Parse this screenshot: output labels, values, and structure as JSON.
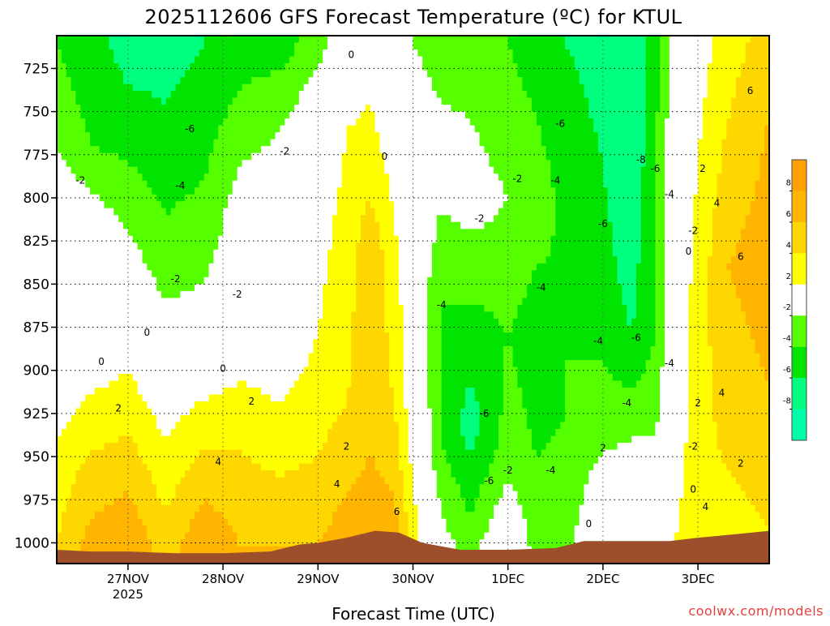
{
  "chart_data": {
    "type": "heatmap",
    "title": "2025112606 GFS Forecast Temperature (ºC) for KTUL",
    "xlabel": "Forecast Time (UTC)",
    "ylabel": "",
    "credit": "coolwx.com/models",
    "x_ticks": [
      {
        "label": "27NOV",
        "sublabel": "2025",
        "day": 1
      },
      {
        "label": "28NOV",
        "sublabel": "",
        "day": 2
      },
      {
        "label": "29NOV",
        "sublabel": "",
        "day": 3
      },
      {
        "label": "30NOV",
        "sublabel": "",
        "day": 4
      },
      {
        "label": "1DEC",
        "sublabel": "",
        "day": 5
      },
      {
        "label": "2DEC",
        "sublabel": "",
        "day": 6
      },
      {
        "label": "3DEC",
        "sublabel": "",
        "day": 7
      }
    ],
    "xlim_days": [
      0.25,
      7.75
    ],
    "y_ticks": [
      725,
      750,
      775,
      800,
      825,
      850,
      875,
      900,
      925,
      950,
      975,
      1000
    ],
    "ylim_hpa": [
      1012,
      706
    ],
    "grid": true,
    "colorbar": {
      "levels": [
        "8",
        "6",
        "4",
        "2",
        "-2",
        "-4",
        "-6",
        "-8"
      ],
      "bins": [
        {
          "range": [
            8,
            10
          ],
          "color": "#ff9f00"
        },
        {
          "range": [
            6,
            8
          ],
          "color": "#ffb400"
        },
        {
          "range": [
            4,
            6
          ],
          "color": "#ffd700"
        },
        {
          "range": [
            2,
            4
          ],
          "color": "#ffff00"
        },
        {
          "range": [
            -2,
            2
          ],
          "color": "#ffffff"
        },
        {
          "range": [
            -4,
            -2
          ],
          "color": "#55ff00"
        },
        {
          "range": [
            -6,
            -4
          ],
          "color": "#00e400"
        },
        {
          "range": [
            -8,
            -6
          ],
          "color": "#00ff7f"
        },
        {
          "range": [
            -10,
            -8
          ],
          "color": "#00ffaa"
        }
      ]
    },
    "ground_color": "#9c4f2a",
    "surface_pressure": [
      {
        "day": 0.25,
        "p": 1004
      },
      {
        "day": 0.6,
        "p": 1005
      },
      {
        "day": 1.0,
        "p": 1005
      },
      {
        "day": 1.5,
        "p": 1006
      },
      {
        "day": 2.0,
        "p": 1006
      },
      {
        "day": 2.5,
        "p": 1005
      },
      {
        "day": 2.8,
        "p": 1001
      },
      {
        "day": 3.0,
        "p": 1000
      },
      {
        "day": 3.3,
        "p": 997
      },
      {
        "day": 3.6,
        "p": 993
      },
      {
        "day": 3.85,
        "p": 994
      },
      {
        "day": 4.1,
        "p": 1000
      },
      {
        "day": 4.5,
        "p": 1004
      },
      {
        "day": 5.0,
        "p": 1004
      },
      {
        "day": 5.5,
        "p": 1003
      },
      {
        "day": 5.8,
        "p": 999
      },
      {
        "day": 6.3,
        "p": 999
      },
      {
        "day": 6.7,
        "p": 999
      },
      {
        "day": 7.0,
        "p": 997
      },
      {
        "day": 7.4,
        "p": 995
      },
      {
        "day": 7.75,
        "p": 993
      }
    ],
    "temperature_columns": [
      {
        "day": 0.25,
        "temps": [
          {
            "p": 710,
            "t": -4
          },
          {
            "p": 760,
            "t": -3
          },
          {
            "p": 800,
            "t": 0
          },
          {
            "p": 900,
            "t": 0
          },
          {
            "p": 960,
            "t": 3
          },
          {
            "p": 1004,
            "t": 4
          }
        ]
      },
      {
        "day": 0.6,
        "temps": [
          {
            "p": 710,
            "t": -5
          },
          {
            "p": 770,
            "t": -4
          },
          {
            "p": 810,
            "t": -1
          },
          {
            "p": 880,
            "t": 0
          },
          {
            "p": 930,
            "t": 3
          },
          {
            "p": 1004,
            "t": 7
          }
        ]
      },
      {
        "day": 1.0,
        "temps": [
          {
            "p": 710,
            "t": -7
          },
          {
            "p": 760,
            "t": -5
          },
          {
            "p": 800,
            "t": -3
          },
          {
            "p": 860,
            "t": 0
          },
          {
            "p": 920,
            "t": 3
          },
          {
            "p": 1004,
            "t": 8
          }
        ]
      },
      {
        "day": 1.4,
        "temps": [
          {
            "p": 710,
            "t": -7
          },
          {
            "p": 780,
            "t": -5
          },
          {
            "p": 840,
            "t": -3
          },
          {
            "p": 900,
            "t": 0
          },
          {
            "p": 940,
            "t": 2
          },
          {
            "p": 1004,
            "t": 5
          }
        ]
      },
      {
        "day": 1.8,
        "temps": [
          {
            "p": 710,
            "t": -6
          },
          {
            "p": 790,
            "t": -4
          },
          {
            "p": 850,
            "t": -2
          },
          {
            "p": 890,
            "t": 0
          },
          {
            "p": 930,
            "t": 3
          },
          {
            "p": 1004,
            "t": 8
          }
        ]
      },
      {
        "day": 2.2,
        "temps": [
          {
            "p": 710,
            "t": -5
          },
          {
            "p": 760,
            "t": -3
          },
          {
            "p": 800,
            "t": -1
          },
          {
            "p": 880,
            "t": 0
          },
          {
            "p": 920,
            "t": 3
          },
          {
            "p": 1004,
            "t": 6
          }
        ]
      },
      {
        "day": 2.6,
        "temps": [
          {
            "p": 710,
            "t": -5
          },
          {
            "p": 760,
            "t": -2
          },
          {
            "p": 830,
            "t": 0
          },
          {
            "p": 900,
            "t": 1
          },
          {
            "p": 940,
            "t": 3
          },
          {
            "p": 1004,
            "t": 6
          }
        ]
      },
      {
        "day": 3.0,
        "temps": [
          {
            "p": 710,
            "t": -3
          },
          {
            "p": 740,
            "t": -1
          },
          {
            "p": 800,
            "t": 1
          },
          {
            "p": 880,
            "t": 2
          },
          {
            "p": 950,
            "t": 4
          },
          {
            "p": 1001,
            "t": 6
          }
        ]
      },
      {
        "day": 3.3,
        "temps": [
          {
            "p": 710,
            "t": 0
          },
          {
            "p": 760,
            "t": 2
          },
          {
            "p": 840,
            "t": 3
          },
          {
            "p": 920,
            "t": 4
          },
          {
            "p": 997,
            "t": 7
          }
        ]
      },
      {
        "day": 3.55,
        "temps": [
          {
            "p": 710,
            "t": 1
          },
          {
            "p": 780,
            "t": 3
          },
          {
            "p": 840,
            "t": 6
          },
          {
            "p": 900,
            "t": 5
          },
          {
            "p": 994,
            "t": 7
          }
        ]
      },
      {
        "day": 3.8,
        "temps": [
          {
            "p": 710,
            "t": 0
          },
          {
            "p": 770,
            "t": 1
          },
          {
            "p": 850,
            "t": 3
          },
          {
            "p": 920,
            "t": 4
          },
          {
            "p": 994,
            "t": 7
          }
        ]
      },
      {
        "day": 4.0,
        "temps": [
          {
            "p": 710,
            "t": -2
          },
          {
            "p": 780,
            "t": 0
          },
          {
            "p": 860,
            "t": 0
          },
          {
            "p": 940,
            "t": 1
          },
          {
            "p": 998,
            "t": 3
          }
        ]
      },
      {
        "day": 4.3,
        "temps": [
          {
            "p": 710,
            "t": -3
          },
          {
            "p": 780,
            "t": -1
          },
          {
            "p": 860,
            "t": -4
          },
          {
            "p": 940,
            "t": -4
          },
          {
            "p": 1002,
            "t": -1
          }
        ]
      },
      {
        "day": 4.6,
        "temps": [
          {
            "p": 710,
            "t": -3
          },
          {
            "p": 800,
            "t": -1
          },
          {
            "p": 880,
            "t": -5
          },
          {
            "p": 930,
            "t": -7
          },
          {
            "p": 1004,
            "t": -3
          }
        ]
      },
      {
        "day": 5.0,
        "temps": [
          {
            "p": 710,
            "t": -4
          },
          {
            "p": 800,
            "t": -2
          },
          {
            "p": 880,
            "t": -4
          },
          {
            "p": 950,
            "t": -3
          },
          {
            "p": 1004,
            "t": 1
          }
        ]
      },
      {
        "day": 5.3,
        "temps": [
          {
            "p": 710,
            "t": -5
          },
          {
            "p": 800,
            "t": -3
          },
          {
            "p": 880,
            "t": -5
          },
          {
            "p": 950,
            "t": -4
          },
          {
            "p": 1004,
            "t": -3
          }
        ]
      },
      {
        "day": 5.6,
        "temps": [
          {
            "p": 710,
            "t": -6
          },
          {
            "p": 760,
            "t": -5
          },
          {
            "p": 850,
            "t": -4
          },
          {
            "p": 930,
            "t": -4
          },
          {
            "p": 1003,
            "t": -3
          }
        ]
      },
      {
        "day": 6.0,
        "temps": [
          {
            "p": 710,
            "t": -7
          },
          {
            "p": 780,
            "t": -6
          },
          {
            "p": 860,
            "t": -5
          },
          {
            "p": 930,
            "t": -3
          },
          {
            "p": 999,
            "t": 1
          }
        ]
      },
      {
        "day": 6.3,
        "temps": [
          {
            "p": 710,
            "t": -7
          },
          {
            "p": 780,
            "t": -8
          },
          {
            "p": 880,
            "t": -6
          },
          {
            "p": 940,
            "t": -2
          },
          {
            "p": 999,
            "t": 0
          }
        ]
      },
      {
        "day": 6.55,
        "temps": [
          {
            "p": 710,
            "t": -5
          },
          {
            "p": 790,
            "t": -4
          },
          {
            "p": 880,
            "t": -4
          },
          {
            "p": 940,
            "t": -2
          },
          {
            "p": 999,
            "t": 1
          }
        ]
      },
      {
        "day": 6.75,
        "temps": [
          {
            "p": 710,
            "t": -1
          },
          {
            "p": 800,
            "t": 0
          },
          {
            "p": 880,
            "t": 0
          },
          {
            "p": 940,
            "t": 1
          },
          {
            "p": 999,
            "t": 2
          }
        ]
      },
      {
        "day": 7.0,
        "temps": [
          {
            "p": 710,
            "t": 1
          },
          {
            "p": 780,
            "t": 2
          },
          {
            "p": 860,
            "t": 3
          },
          {
            "p": 940,
            "t": 3
          },
          {
            "p": 997,
            "t": 3
          }
        ]
      },
      {
        "day": 7.3,
        "temps": [
          {
            "p": 710,
            "t": 3
          },
          {
            "p": 760,
            "t": 4
          },
          {
            "p": 840,
            "t": 6
          },
          {
            "p": 920,
            "t": 5
          },
          {
            "p": 995,
            "t": 3
          }
        ]
      },
      {
        "day": 7.75,
        "temps": [
          {
            "p": 710,
            "t": 5
          },
          {
            "p": 750,
            "t": 6
          },
          {
            "p": 830,
            "t": 7
          },
          {
            "p": 910,
            "t": 6
          },
          {
            "p": 993,
            "t": 4
          }
        ]
      }
    ],
    "contour_labels": [
      {
        "text": "0",
        "day": 3.35,
        "p": 717
      },
      {
        "text": "6",
        "day": 7.55,
        "p": 738
      },
      {
        "text": "-6",
        "day": 1.65,
        "p": 760
      },
      {
        "text": "-6",
        "day": 5.55,
        "p": 757
      },
      {
        "text": "-2",
        "day": 2.65,
        "p": 773
      },
      {
        "text": "0",
        "day": 3.7,
        "p": 776
      },
      {
        "text": "-8",
        "day": 6.4,
        "p": 778
      },
      {
        "text": "-6",
        "day": 6.55,
        "p": 783
      },
      {
        "text": "2",
        "day": 7.05,
        "p": 783
      },
      {
        "text": "-2",
        "day": 0.5,
        "p": 790
      },
      {
        "text": "-4",
        "day": 1.55,
        "p": 793
      },
      {
        "text": "-2",
        "day": 5.1,
        "p": 789
      },
      {
        "text": "-4",
        "day": 5.5,
        "p": 790
      },
      {
        "text": "-4",
        "day": 6.7,
        "p": 798
      },
      {
        "text": "4",
        "day": 7.2,
        "p": 803
      },
      {
        "text": "-2",
        "day": 4.7,
        "p": 812
      },
      {
        "text": "-6",
        "day": 6.0,
        "p": 815
      },
      {
        "text": "-2",
        "day": 6.95,
        "p": 819
      },
      {
        "text": "0",
        "day": 6.9,
        "p": 831
      },
      {
        "text": "6",
        "day": 7.45,
        "p": 834
      },
      {
        "text": "-2",
        "day": 1.5,
        "p": 847
      },
      {
        "text": "-4",
        "day": 5.35,
        "p": 852
      },
      {
        "text": "-2",
        "day": 2.15,
        "p": 856
      },
      {
        "text": "-4",
        "day": 4.3,
        "p": 862
      },
      {
        "text": "0",
        "day": 1.2,
        "p": 878
      },
      {
        "text": "-6",
        "day": 6.35,
        "p": 881
      },
      {
        "text": "-4",
        "day": 5.95,
        "p": 883
      },
      {
        "text": "0",
        "day": 0.72,
        "p": 895
      },
      {
        "text": "-4",
        "day": 6.7,
        "p": 896
      },
      {
        "text": "0",
        "day": 2.0,
        "p": 899
      },
      {
        "text": "4",
        "day": 7.25,
        "p": 913
      },
      {
        "text": "2",
        "day": 0.9,
        "p": 922
      },
      {
        "text": "2",
        "day": 2.3,
        "p": 918
      },
      {
        "text": "-4",
        "day": 6.25,
        "p": 919
      },
      {
        "text": "2",
        "day": 7.0,
        "p": 919
      },
      {
        "text": "-6",
        "day": 4.75,
        "p": 925
      },
      {
        "text": "2",
        "day": 3.3,
        "p": 944
      },
      {
        "text": "-2",
        "day": 6.95,
        "p": 944
      },
      {
        "text": "2",
        "day": 6.0,
        "p": 945
      },
      {
        "text": "4",
        "day": 1.95,
        "p": 953
      },
      {
        "text": "-2",
        "day": 5.0,
        "p": 958
      },
      {
        "text": "-4",
        "day": 5.45,
        "p": 958
      },
      {
        "text": "2",
        "day": 7.45,
        "p": 954
      },
      {
        "text": "4",
        "day": 3.2,
        "p": 966
      },
      {
        "text": "-6",
        "day": 4.8,
        "p": 964
      },
      {
        "text": "0",
        "day": 6.95,
        "p": 969
      },
      {
        "text": "4",
        "day": 7.08,
        "p": 979
      },
      {
        "text": "6",
        "day": 3.83,
        "p": 982
      },
      {
        "text": "0",
        "day": 5.85,
        "p": 989
      }
    ]
  }
}
